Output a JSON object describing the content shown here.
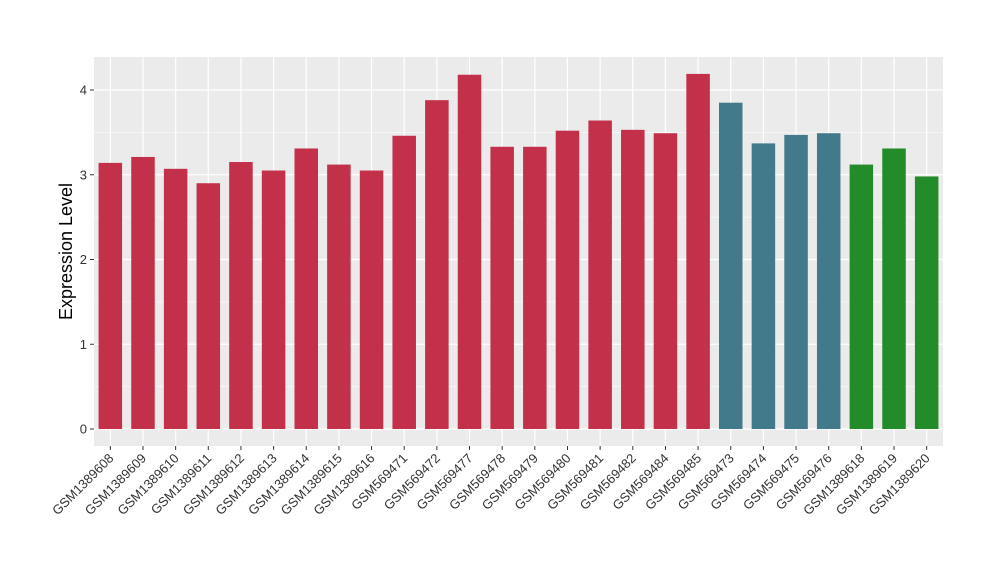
{
  "chart_data": {
    "type": "bar",
    "title": "",
    "xlabel": "",
    "ylabel": "Expression Level",
    "ylim": [
      0,
      4.35
    ],
    "yticks": [
      0,
      1,
      2,
      3,
      4
    ],
    "grid": true,
    "colors": {
      "panel_background": "#ebebeb",
      "grid": "#ffffff",
      "group_red": "#c3304a",
      "group_blue": "#427a8c",
      "group_green": "#238b2a"
    },
    "categories": [
      "GSM1389608",
      "GSM1389609",
      "GSM1389610",
      "GSM1389611",
      "GSM1389612",
      "GSM1389613",
      "GSM1389614",
      "GSM1389615",
      "GSM1389616",
      "GSM569471",
      "GSM569472",
      "GSM569477",
      "GSM569478",
      "GSM569479",
      "GSM569480",
      "GSM569481",
      "GSM569482",
      "GSM569484",
      "GSM569485",
      "GSM569473",
      "GSM569474",
      "GSM569475",
      "GSM569476",
      "GSM1389618",
      "GSM1389619",
      "GSM1389620"
    ],
    "values": [
      3.14,
      3.21,
      3.07,
      2.9,
      3.15,
      3.05,
      3.31,
      3.12,
      3.05,
      3.46,
      3.88,
      4.18,
      3.33,
      3.33,
      3.52,
      3.64,
      3.53,
      3.49,
      4.19,
      3.85,
      3.37,
      3.47,
      3.49,
      3.12,
      3.31,
      2.98
    ],
    "bar_groups": [
      "red",
      "red",
      "red",
      "red",
      "red",
      "red",
      "red",
      "red",
      "red",
      "red",
      "red",
      "red",
      "red",
      "red",
      "red",
      "red",
      "red",
      "red",
      "red",
      "blue",
      "blue",
      "blue",
      "blue",
      "green",
      "green",
      "green"
    ]
  }
}
